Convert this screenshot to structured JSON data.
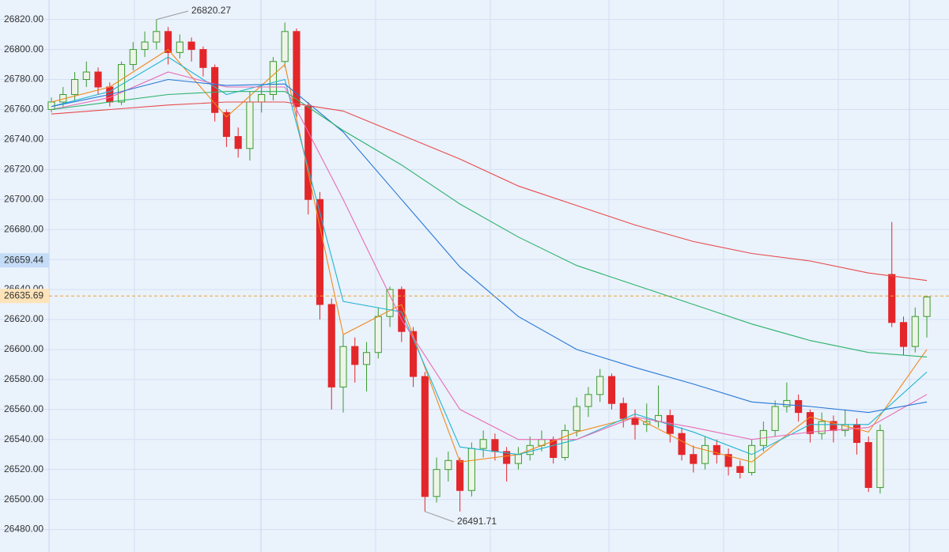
{
  "chart_data": {
    "type": "candlestick",
    "open": [
      26760,
      26765,
      26770,
      26780,
      26785,
      26775,
      26765,
      26790,
      26800,
      26805,
      26812,
      26798,
      26805,
      26800,
      26788,
      26758,
      26742,
      26734,
      26765,
      26770,
      26792,
      26812,
      26762,
      26700,
      26630,
      26575,
      26602,
      26590,
      26598,
      26622,
      26640,
      26612,
      26582,
      26502,
      26520,
      26526,
      26506,
      26534,
      26540,
      26532,
      26524,
      26530,
      26536,
      26540,
      26528,
      26546,
      26562,
      26570,
      26582,
      26564,
      26554,
      26550,
      26552,
      26556,
      26544,
      26530,
      26524,
      26536,
      26530,
      26522,
      26518,
      26536,
      26546,
      26562,
      26566,
      26558,
      26544,
      26552,
      26546,
      26550,
      26538,
      26508,
      26650,
      26618,
      26602,
      26622
    ],
    "high": [
      26768,
      26775,
      26785,
      26792,
      26788,
      26778,
      26792,
      26805,
      26812,
      26820,
      26815,
      26810,
      26808,
      26802,
      26790,
      26760,
      26748,
      26772,
      26776,
      26795,
      26818,
      26814,
      26765,
      26705,
      26634,
      26610,
      26608,
      26605,
      26628,
      26642,
      26642,
      26615,
      26585,
      26528,
      26532,
      26528,
      26538,
      26546,
      26544,
      26535,
      26535,
      26542,
      26546,
      26542,
      26550,
      26568,
      26575,
      26587,
      26584,
      26568,
      26560,
      26564,
      26576,
      26560,
      26548,
      26536,
      26542,
      26540,
      26534,
      26526,
      26540,
      26552,
      26566,
      26578,
      26570,
      26560,
      26558,
      26556,
      26560,
      26554,
      26542,
      26550,
      26685,
      26622,
      26628,
      26636
    ],
    "low": [
      26758,
      26762,
      26766,
      26775,
      26770,
      26762,
      26763,
      26786,
      26795,
      26800,
      26790,
      26794,
      26792,
      26782,
      26752,
      26735,
      26728,
      26726,
      26758,
      26766,
      26788,
      26755,
      26690,
      26620,
      26560,
      26558,
      26578,
      26572,
      26594,
      26615,
      26605,
      26575,
      26492,
      26498,
      26512,
      26492,
      26502,
      26528,
      26526,
      26512,
      26520,
      26526,
      26532,
      26524,
      26526,
      26542,
      26555,
      26565,
      26560,
      26548,
      26540,
      26545,
      26548,
      26538,
      26526,
      26518,
      26520,
      26524,
      26516,
      26514,
      26516,
      26532,
      26542,
      26558,
      26552,
      26538,
      26540,
      26538,
      26542,
      26530,
      26505,
      26504,
      26615,
      26596,
      26598,
      26608
    ],
    "close": [
      26765,
      26770,
      26780,
      26785,
      26775,
      26765,
      26790,
      26800,
      26805,
      26812,
      26798,
      26805,
      26800,
      26788,
      26758,
      26742,
      26734,
      26765,
      26770,
      26792,
      26812,
      26762,
      26700,
      26630,
      26575,
      26602,
      26590,
      26598,
      26622,
      26640,
      26612,
      26582,
      26502,
      26520,
      26526,
      26506,
      26534,
      26540,
      26532,
      26524,
      26530,
      26536,
      26540,
      26528,
      26546,
      26562,
      26570,
      26582,
      26564,
      26554,
      26550,
      26552,
      26556,
      26544,
      26530,
      26524,
      26536,
      26530,
      26522,
      26518,
      26536,
      26546,
      26562,
      26566,
      26558,
      26544,
      26552,
      26546,
      26550,
      26538,
      26508,
      26546,
      26618,
      26602,
      26622,
      26635
    ],
    "up_color": "#3a9a2e",
    "down_color": "#e3262a",
    "ma_x": [
      0,
      5,
      10,
      15,
      20,
      25,
      30,
      35,
      40,
      45,
      50,
      55,
      60,
      65,
      70,
      75
    ],
    "series": [
      {
        "color": "#f08a1c",
        "values": [
          26765,
          26775,
          26800,
          26755,
          26790,
          26610,
          26630,
          26525,
          26530,
          26545,
          26555,
          26535,
          26525,
          26555,
          26545,
          26600
        ]
      },
      {
        "color": "#22b5d0",
        "values": [
          26762,
          26772,
          26795,
          26770,
          26780,
          26632,
          26625,
          26535,
          26530,
          26540,
          26557,
          26545,
          26530,
          26550,
          26550,
          26585
        ]
      },
      {
        "color": "#e86cb4",
        "values": [
          26760,
          26768,
          26785,
          26775,
          26775,
          26700,
          26620,
          26560,
          26540,
          26540,
          26555,
          26548,
          26540,
          26545,
          26548,
          26570
        ]
      },
      {
        "color": "#2677d6",
        "values": [
          26762,
          26770,
          26780,
          26776,
          26777,
          26745,
          26700,
          26655,
          26622,
          26600,
          26588,
          26577,
          26565,
          26562,
          26558,
          26565
        ]
      },
      {
        "color": "#2db36a",
        "values": [
          26760,
          26765,
          26770,
          26772,
          26772,
          26746,
          26723,
          26697,
          26675,
          26656,
          26643,
          26630,
          26617,
          26606,
          26598,
          26595
        ]
      },
      {
        "color": "#e84a4a",
        "values": [
          26757,
          26760,
          26763,
          26765,
          26765,
          26759,
          26743,
          26727,
          26709,
          26696,
          26683,
          26672,
          26664,
          26659,
          26651,
          26646
        ]
      }
    ],
    "ylim": [
      26465,
      26833
    ],
    "yticks": [
      {
        "value": 26480,
        "label": "26480.00"
      },
      {
        "value": 26500,
        "label": "26500.00"
      },
      {
        "value": 26520,
        "label": "26520.00"
      },
      {
        "value": 26540,
        "label": "26540.00"
      },
      {
        "value": 26560,
        "label": "26560.00"
      },
      {
        "value": 26580,
        "label": "26580.00"
      },
      {
        "value": 26600,
        "label": "26600.00"
      },
      {
        "value": 26620,
        "label": "26620.00"
      },
      {
        "value": 26640,
        "label": "26640.00"
      },
      {
        "value": 26660,
        "label": "26660.00"
      },
      {
        "value": 26680,
        "label": "26680.00"
      },
      {
        "value": 26700,
        "label": "26700.00"
      },
      {
        "value": 26720,
        "label": "26720.00"
      },
      {
        "value": 26740,
        "label": "26740.00"
      },
      {
        "value": 26760,
        "label": "26760.00"
      },
      {
        "value": 26780,
        "label": "26780.00"
      },
      {
        "value": 26800,
        "label": "26800.00"
      },
      {
        "value": 26820,
        "label": "26820.00"
      }
    ],
    "grid": true,
    "high_label": 26820.27,
    "low_label": 26491.71,
    "cursor_price": 26659.44,
    "last_price": 26635.69
  }
}
